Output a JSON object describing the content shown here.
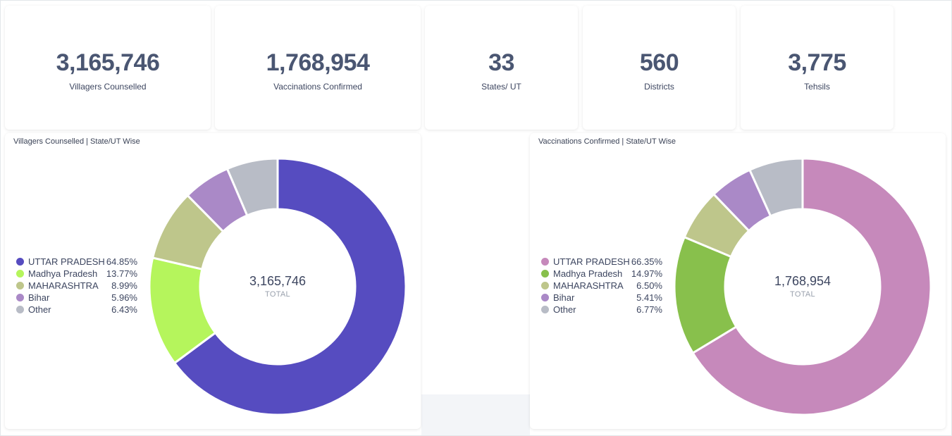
{
  "kpis": [
    {
      "value": "3,165,746",
      "label": "Villagers Counselled"
    },
    {
      "value": "1,768,954",
      "label": "Vaccinations Confirmed"
    },
    {
      "value": "33",
      "label": "States/ UT"
    },
    {
      "value": "560",
      "label": "Districts"
    },
    {
      "value": "3,775",
      "label": "Tehsils"
    }
  ],
  "chart_data": [
    {
      "type": "pie",
      "title": "Villagers Counselled | State/UT Wise",
      "center_value": "3,165,746",
      "center_label": "TOTAL",
      "legend_position": "left",
      "categories": [
        "UTTAR PRADESH",
        "Madhya Pradesh",
        "MAHARASHTRA",
        "Bihar",
        "Other"
      ],
      "values": [
        64.85,
        13.77,
        8.99,
        5.96,
        6.43
      ],
      "labels": [
        "64.85%",
        "13.77%",
        "8.99%",
        "5.96%",
        "6.43%"
      ],
      "colors": [
        "#564cc0",
        "#b5f55c",
        "#bec68b",
        "#aa89c7",
        "#b8bcc6"
      ]
    },
    {
      "type": "pie",
      "title": "Vaccinations Confirmed | State/UT Wise",
      "center_value": "1,768,954",
      "center_label": "TOTAL",
      "legend_position": "left",
      "categories": [
        "UTTAR PRADESH",
        "Madhya Pradesh",
        "MAHARASHTRA",
        "Bihar",
        "Other"
      ],
      "values": [
        66.35,
        14.97,
        6.5,
        5.41,
        6.77
      ],
      "labels": [
        "66.35%",
        "14.97%",
        "6.50%",
        "5.41%",
        "6.77%"
      ],
      "colors": [
        "#c689bb",
        "#88c04c",
        "#bec68b",
        "#aa89c7",
        "#b8bcc6"
      ]
    }
  ]
}
